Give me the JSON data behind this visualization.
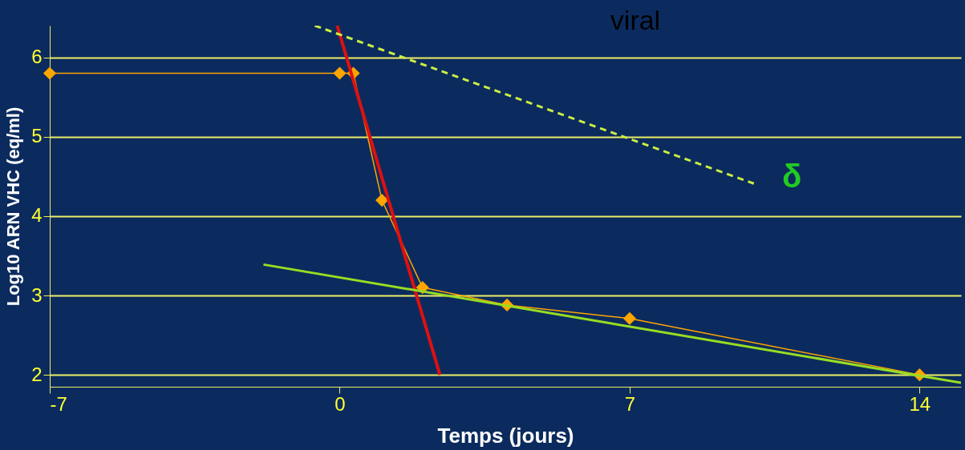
{
  "chart_data": {
    "type": "line",
    "xlabel": "Temps (jours)",
    "ylabel": "Log10 ARN VHC (eq/ml)",
    "xlim": [
      -7,
      15
    ],
    "ylim": [
      1.85,
      6.4
    ],
    "xticks": [
      -7,
      0,
      7,
      14
    ],
    "yticks": [
      2,
      3,
      4,
      5,
      6
    ],
    "grid": "y",
    "annotations": [
      "viral",
      "δ"
    ],
    "series": [
      {
        "color": "#ffa500",
        "marker": "diamond",
        "x": [
          -7,
          0,
          0.33,
          1.02,
          2.0,
          4.04,
          7,
          14
        ],
        "values": [
          5.8,
          5.8,
          5.8,
          4.2,
          3.1,
          2.88,
          2.71,
          2.0
        ]
      },
      {
        "color": "#e01010",
        "marker": "none",
        "x": [
          -0.06,
          2.42
        ],
        "values": [
          6.4,
          2.0
        ]
      },
      {
        "color": "#99dd22",
        "marker": "none",
        "x": [
          -1.84,
          15
        ],
        "values": [
          3.39,
          1.9
        ]
      },
      {
        "color": "#ccee44",
        "marker": "none",
        "line_style": "dashed",
        "x": [
          -0.6,
          10.0
        ],
        "values": [
          6.4,
          4.41
        ]
      }
    ]
  }
}
